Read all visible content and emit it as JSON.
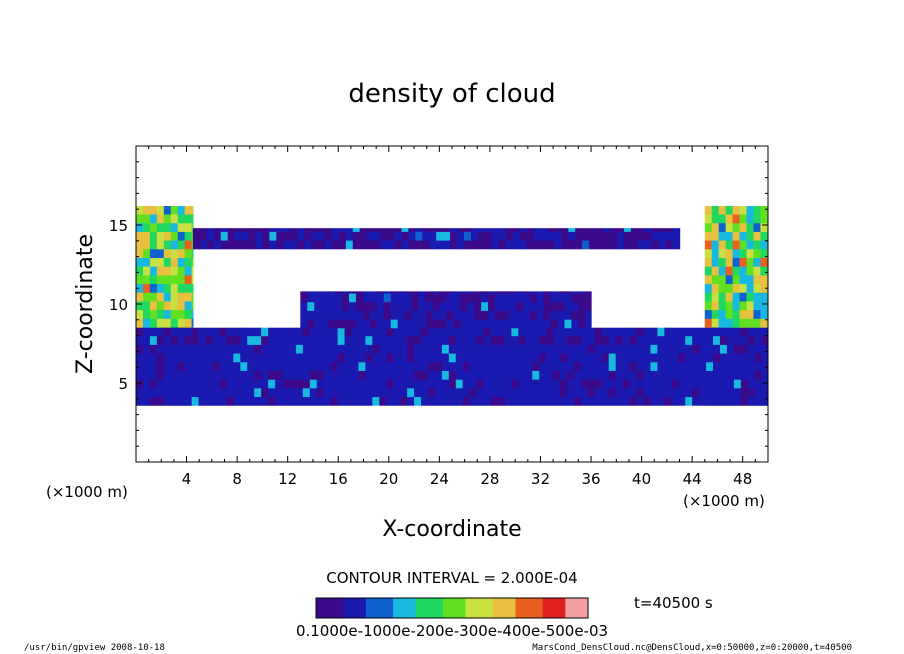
{
  "chart_data": {
    "type": "heatmap",
    "title": "density of cloud",
    "xlabel": "X-coordinate",
    "ylabel": "Z-coordinate",
    "x_unit": "(×1000 m)",
    "y_unit": "(×1000 m)",
    "xlim": [
      0,
      50
    ],
    "ylim": [
      0,
      20
    ],
    "xticks": [
      4,
      8,
      12,
      16,
      20,
      24,
      28,
      32,
      36,
      40,
      44,
      48
    ],
    "yticks": [
      5,
      10,
      15
    ],
    "cloud_layers": [
      {
        "z_range": [
          3.6,
          16.2
        ],
        "x_range": [
          0,
          4.5
        ],
        "level": 0.5
      },
      {
        "z_range": [
          3.6,
          16.2
        ],
        "x_range": [
          45,
          50
        ],
        "level": 0.5
      },
      {
        "z_range": [
          3.6,
          8.5
        ],
        "x_range": [
          0,
          50
        ],
        "level": 0.12
      },
      {
        "z_range": [
          8.5,
          10.8
        ],
        "x_range": [
          13,
          36
        ],
        "level": 0.1
      },
      {
        "z_range": [
          13.5,
          14.8
        ],
        "x_range": [
          4.5,
          43
        ],
        "level": 0.08
      }
    ],
    "contour_interval": "CONTOUR INTERVAL = 2.000E-04",
    "time_label": "t=40500 s",
    "colorbar_labels": "0.1000e-1000e-200e-300e-400e-500e-03",
    "colorbar_colors": [
      "#3a0a8a",
      "#1a1ab0",
      "#1060d0",
      "#18b8e0",
      "#20d860",
      "#60e020",
      "#c8e040",
      "#e8c040",
      "#e86020",
      "#e02020",
      "#f4a0a0"
    ],
    "footer_left": "/usr/bin/gpview   2008-10-18",
    "footer_right": "MarsCond_DensCloud.nc@DensCloud,x=0:50000,z=0:20000,t=40500"
  }
}
